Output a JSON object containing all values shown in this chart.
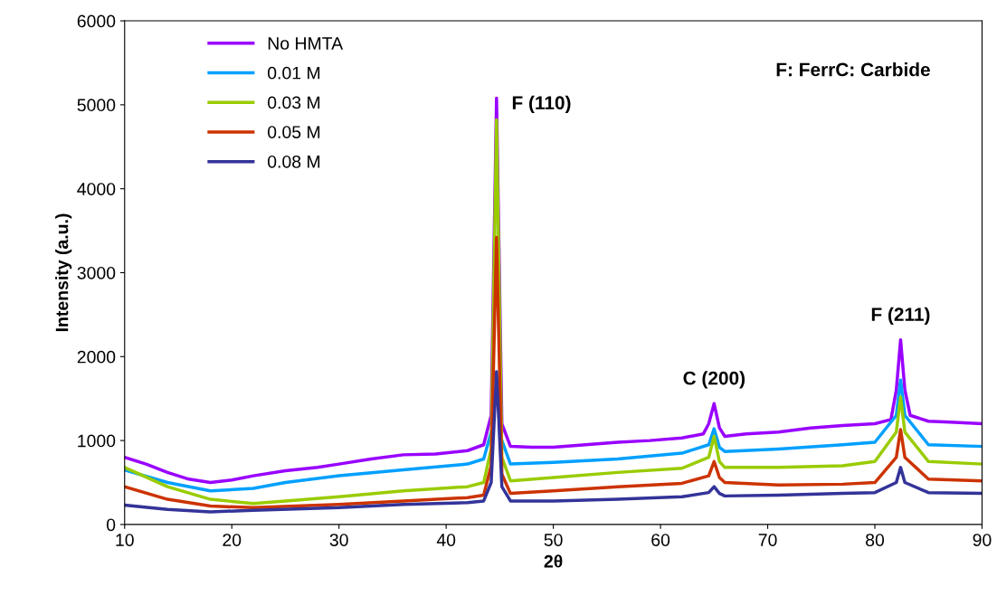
{
  "chart_data": {
    "type": "line",
    "xlabel": "2θ",
    "ylabel": "Intensity (a.u.)",
    "xlim": [
      10,
      90
    ],
    "xticks": [
      10,
      20,
      30,
      40,
      50,
      60,
      70,
      80,
      90
    ],
    "ylim": [
      0,
      6000
    ],
    "yticks": [
      0,
      1000,
      2000,
      3000,
      4000,
      5000,
      6000
    ],
    "grid": false,
    "legend": "top left",
    "marker": "none",
    "line_style": "solid",
    "annotations": [
      {
        "text": "F (110)",
        "x": 44.7,
        "y": 5080
      },
      {
        "text": "C (200)",
        "x": 65,
        "y": 1440
      },
      {
        "text": "F (211)",
        "x": 82.4,
        "y": 2200
      },
      "F: FerrC: Carbide"
    ],
    "series": [
      {
        "name": "No HMTA",
        "color": "#9900ff",
        "x": [
          10,
          12,
          14,
          16,
          18,
          20,
          22,
          25,
          28,
          30,
          33,
          36,
          39,
          42,
          43.5,
          44.2,
          44.7,
          45.2,
          46,
          48,
          50,
          53,
          56,
          59,
          62,
          64,
          64.5,
          65,
          65.5,
          66,
          68,
          71,
          74,
          77,
          80,
          81.5,
          82,
          82.4,
          82.8,
          83.3,
          85,
          87,
          90
        ],
        "values": [
          800,
          720,
          620,
          540,
          500,
          530,
          580,
          640,
          680,
          720,
          780,
          830,
          840,
          880,
          950,
          1300,
          5080,
          1200,
          930,
          920,
          920,
          950,
          980,
          1000,
          1030,
          1080,
          1200,
          1440,
          1150,
          1050,
          1080,
          1100,
          1150,
          1180,
          1200,
          1250,
          1600,
          2200,
          1600,
          1300,
          1230,
          1220,
          1200
        ]
      },
      {
        "name": "0.01 M",
        "color": "#00a0ff",
        "x": [
          10,
          14,
          18,
          22,
          25,
          30,
          36,
          42,
          43.5,
          44.2,
          44.7,
          45.2,
          46,
          50,
          56,
          62,
          64.5,
          65,
          65.5,
          66,
          71,
          77,
          80,
          82,
          82.4,
          82.8,
          85,
          90
        ],
        "values": [
          650,
          500,
          400,
          430,
          500,
          580,
          650,
          720,
          780,
          1100,
          null,
          1000,
          720,
          740,
          780,
          850,
          950,
          1140,
          920,
          870,
          900,
          950,
          980,
          1300,
          1720,
          1300,
          950,
          930
        ]
      },
      {
        "name": "0.03 M",
        "color": "#99cc00",
        "x": [
          10,
          14,
          18,
          22,
          25,
          30,
          36,
          42,
          43.5,
          44.2,
          44.7,
          45.2,
          46,
          50,
          56,
          62,
          64.5,
          65,
          65.5,
          66,
          71,
          77,
          80,
          82,
          82.4,
          82.8,
          85,
          90
        ],
        "values": [
          680,
          450,
          300,
          250,
          280,
          330,
          400,
          450,
          500,
          900,
          4820,
          800,
          520,
          560,
          620,
          670,
          800,
          1050,
          750,
          680,
          680,
          700,
          750,
          1100,
          1520,
          1100,
          750,
          720
        ]
      },
      {
        "name": "0.05 M",
        "color": "#cc3300",
        "x": [
          10,
          14,
          18,
          22,
          30,
          36,
          42,
          43.5,
          44.2,
          44.7,
          45.2,
          46,
          50,
          56,
          62,
          64.5,
          65,
          65.5,
          66,
          71,
          77,
          80,
          82,
          82.4,
          82.8,
          85,
          90
        ],
        "values": [
          450,
          300,
          220,
          200,
          240,
          280,
          320,
          350,
          700,
          3420,
          600,
          370,
          400,
          450,
          490,
          580,
          750,
          560,
          500,
          470,
          480,
          500,
          800,
          1130,
          800,
          540,
          520
        ]
      },
      {
        "name": "0.08 M",
        "color": "#333399",
        "x": [
          10,
          14,
          18,
          22,
          30,
          36,
          42,
          43.5,
          44.2,
          44.7,
          45.2,
          46,
          50,
          56,
          62,
          64.5,
          65,
          65.5,
          66,
          71,
          77,
          80,
          82,
          82.4,
          82.8,
          85,
          90
        ],
        "values": [
          230,
          180,
          150,
          170,
          200,
          240,
          260,
          280,
          500,
          1820,
          450,
          280,
          280,
          300,
          330,
          380,
          450,
          370,
          340,
          350,
          370,
          380,
          500,
          680,
          500,
          380,
          370
        ]
      }
    ]
  }
}
